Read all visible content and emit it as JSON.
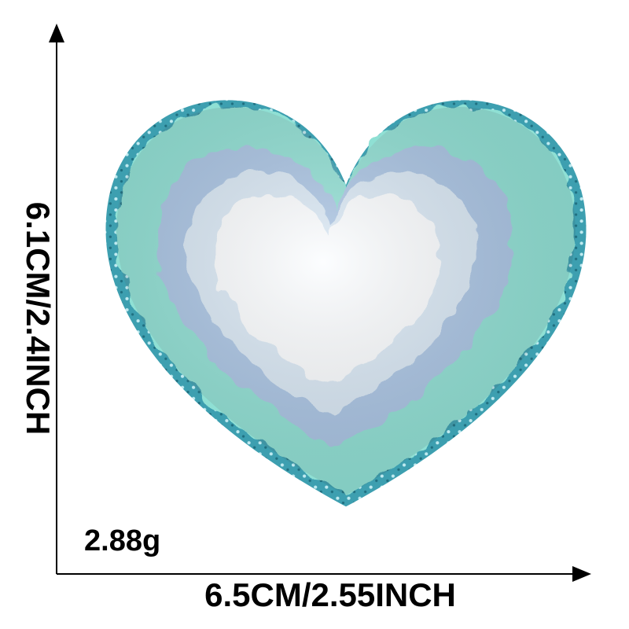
{
  "image": {
    "subject": "heart-shaped chenille patch",
    "colors": {
      "glitter_border": "#3d9fb0",
      "outer_ring": "#8fe0d4",
      "middle_ring": "#a9c4e4",
      "inner_ring": "#d9e8f5",
      "center": "#ffffff",
      "dimension_lines": "#000000"
    }
  },
  "dimensions": {
    "height_label": "6.1CM/2.4INCH",
    "width_label": "6.5CM/2.55INCH",
    "weight_label": "2.88g"
  }
}
